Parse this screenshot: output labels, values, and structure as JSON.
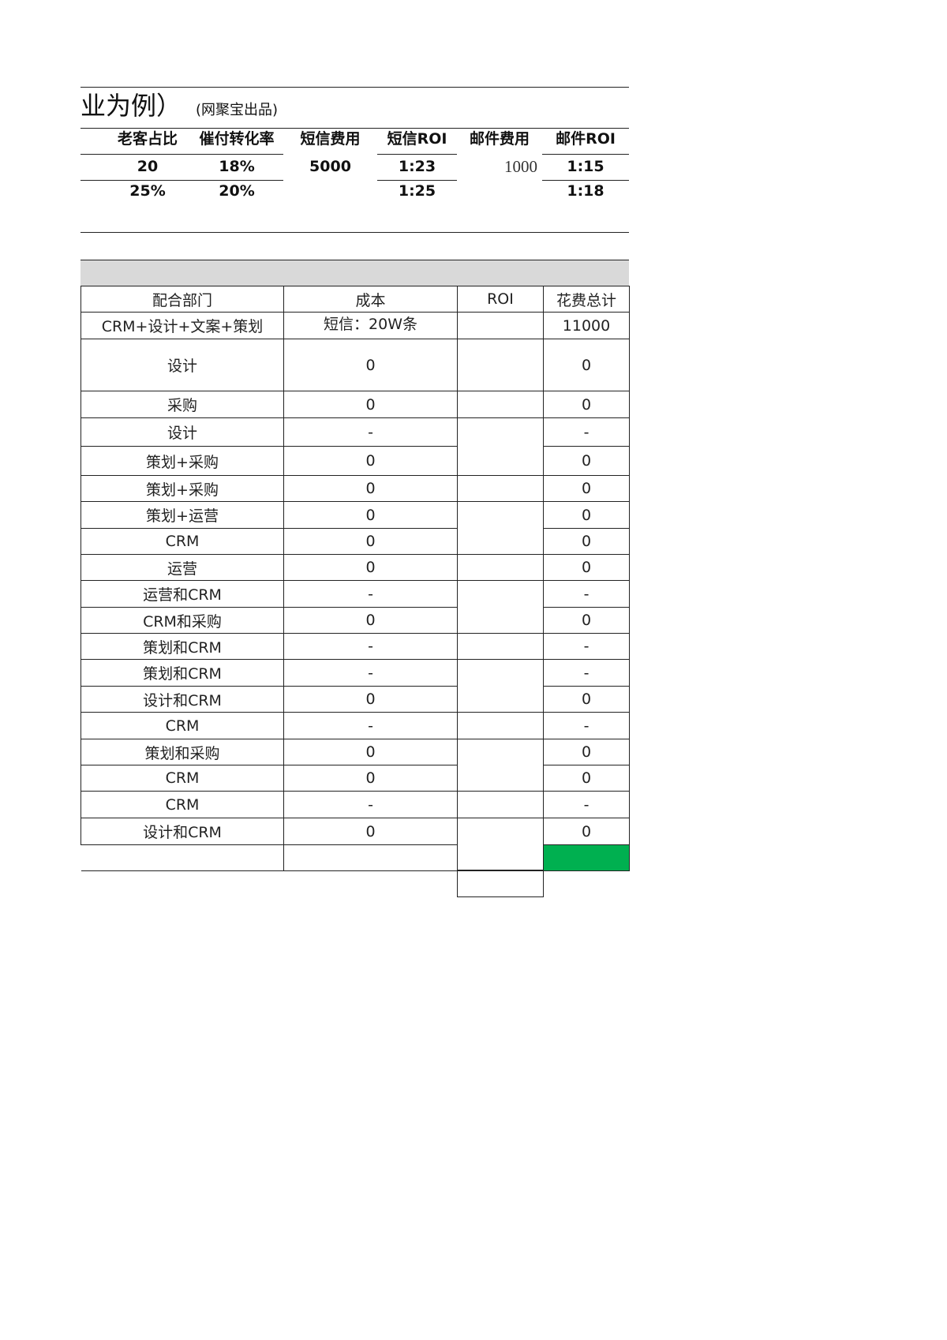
{
  "header": {
    "title": "业为例）",
    "subtitle": "(网聚宝出品)"
  },
  "summary": {
    "columns": [
      "老客占比",
      "催付转化率",
      "短信费用",
      "短信ROI",
      "邮件费用",
      "邮件ROI"
    ],
    "row1": [
      "20",
      "18%",
      "5000",
      "1:23",
      "1000",
      "1:15"
    ],
    "row2": [
      "25%",
      "20%",
      "",
      "1:25",
      "",
      "1:18"
    ]
  },
  "table": {
    "columns": [
      "配合部门",
      "成本",
      "ROI",
      "花费总计"
    ],
    "rows": [
      {
        "dept": "CRM+设计+文案+策划",
        "cost": "短信：20W条",
        "total": "11000"
      },
      {
        "dept": "设计",
        "cost": "0",
        "total": "0"
      },
      {
        "dept": "采购",
        "cost": "0",
        "total": "0"
      },
      {
        "dept": "设计",
        "cost": "-",
        "total": "-"
      },
      {
        "dept": "策划+采购",
        "cost": "0",
        "total": "0"
      },
      {
        "dept": "策划+采购",
        "cost": "0",
        "total": "0"
      },
      {
        "dept": "策划+运营",
        "cost": "0",
        "total": "0"
      },
      {
        "dept": "CRM",
        "cost": "0",
        "total": "0"
      },
      {
        "dept": "运营",
        "cost": "0",
        "total": "0"
      },
      {
        "dept": "运营和CRM",
        "cost": "-",
        "total": "-"
      },
      {
        "dept": "CRM和采购",
        "cost": "0",
        "total": "0"
      },
      {
        "dept": "策划和CRM",
        "cost": "-",
        "total": "-"
      },
      {
        "dept": "策划和CRM",
        "cost": "-",
        "total": "-"
      },
      {
        "dept": "设计和CRM",
        "cost": "0",
        "total": "0"
      },
      {
        "dept": "CRM",
        "cost": "-",
        "total": "-"
      },
      {
        "dept": "策划和采购",
        "cost": "0",
        "total": "0"
      },
      {
        "dept": "CRM",
        "cost": "0",
        "total": "0"
      },
      {
        "dept": "CRM",
        "cost": "-",
        "total": "-"
      },
      {
        "dept": "设计和CRM",
        "cost": "0",
        "total": "0"
      },
      {
        "dept": "",
        "cost": "",
        "total": ""
      }
    ]
  },
  "colors": {
    "highlight_green": "#00b050",
    "band_gray": "#d9d9d9"
  }
}
